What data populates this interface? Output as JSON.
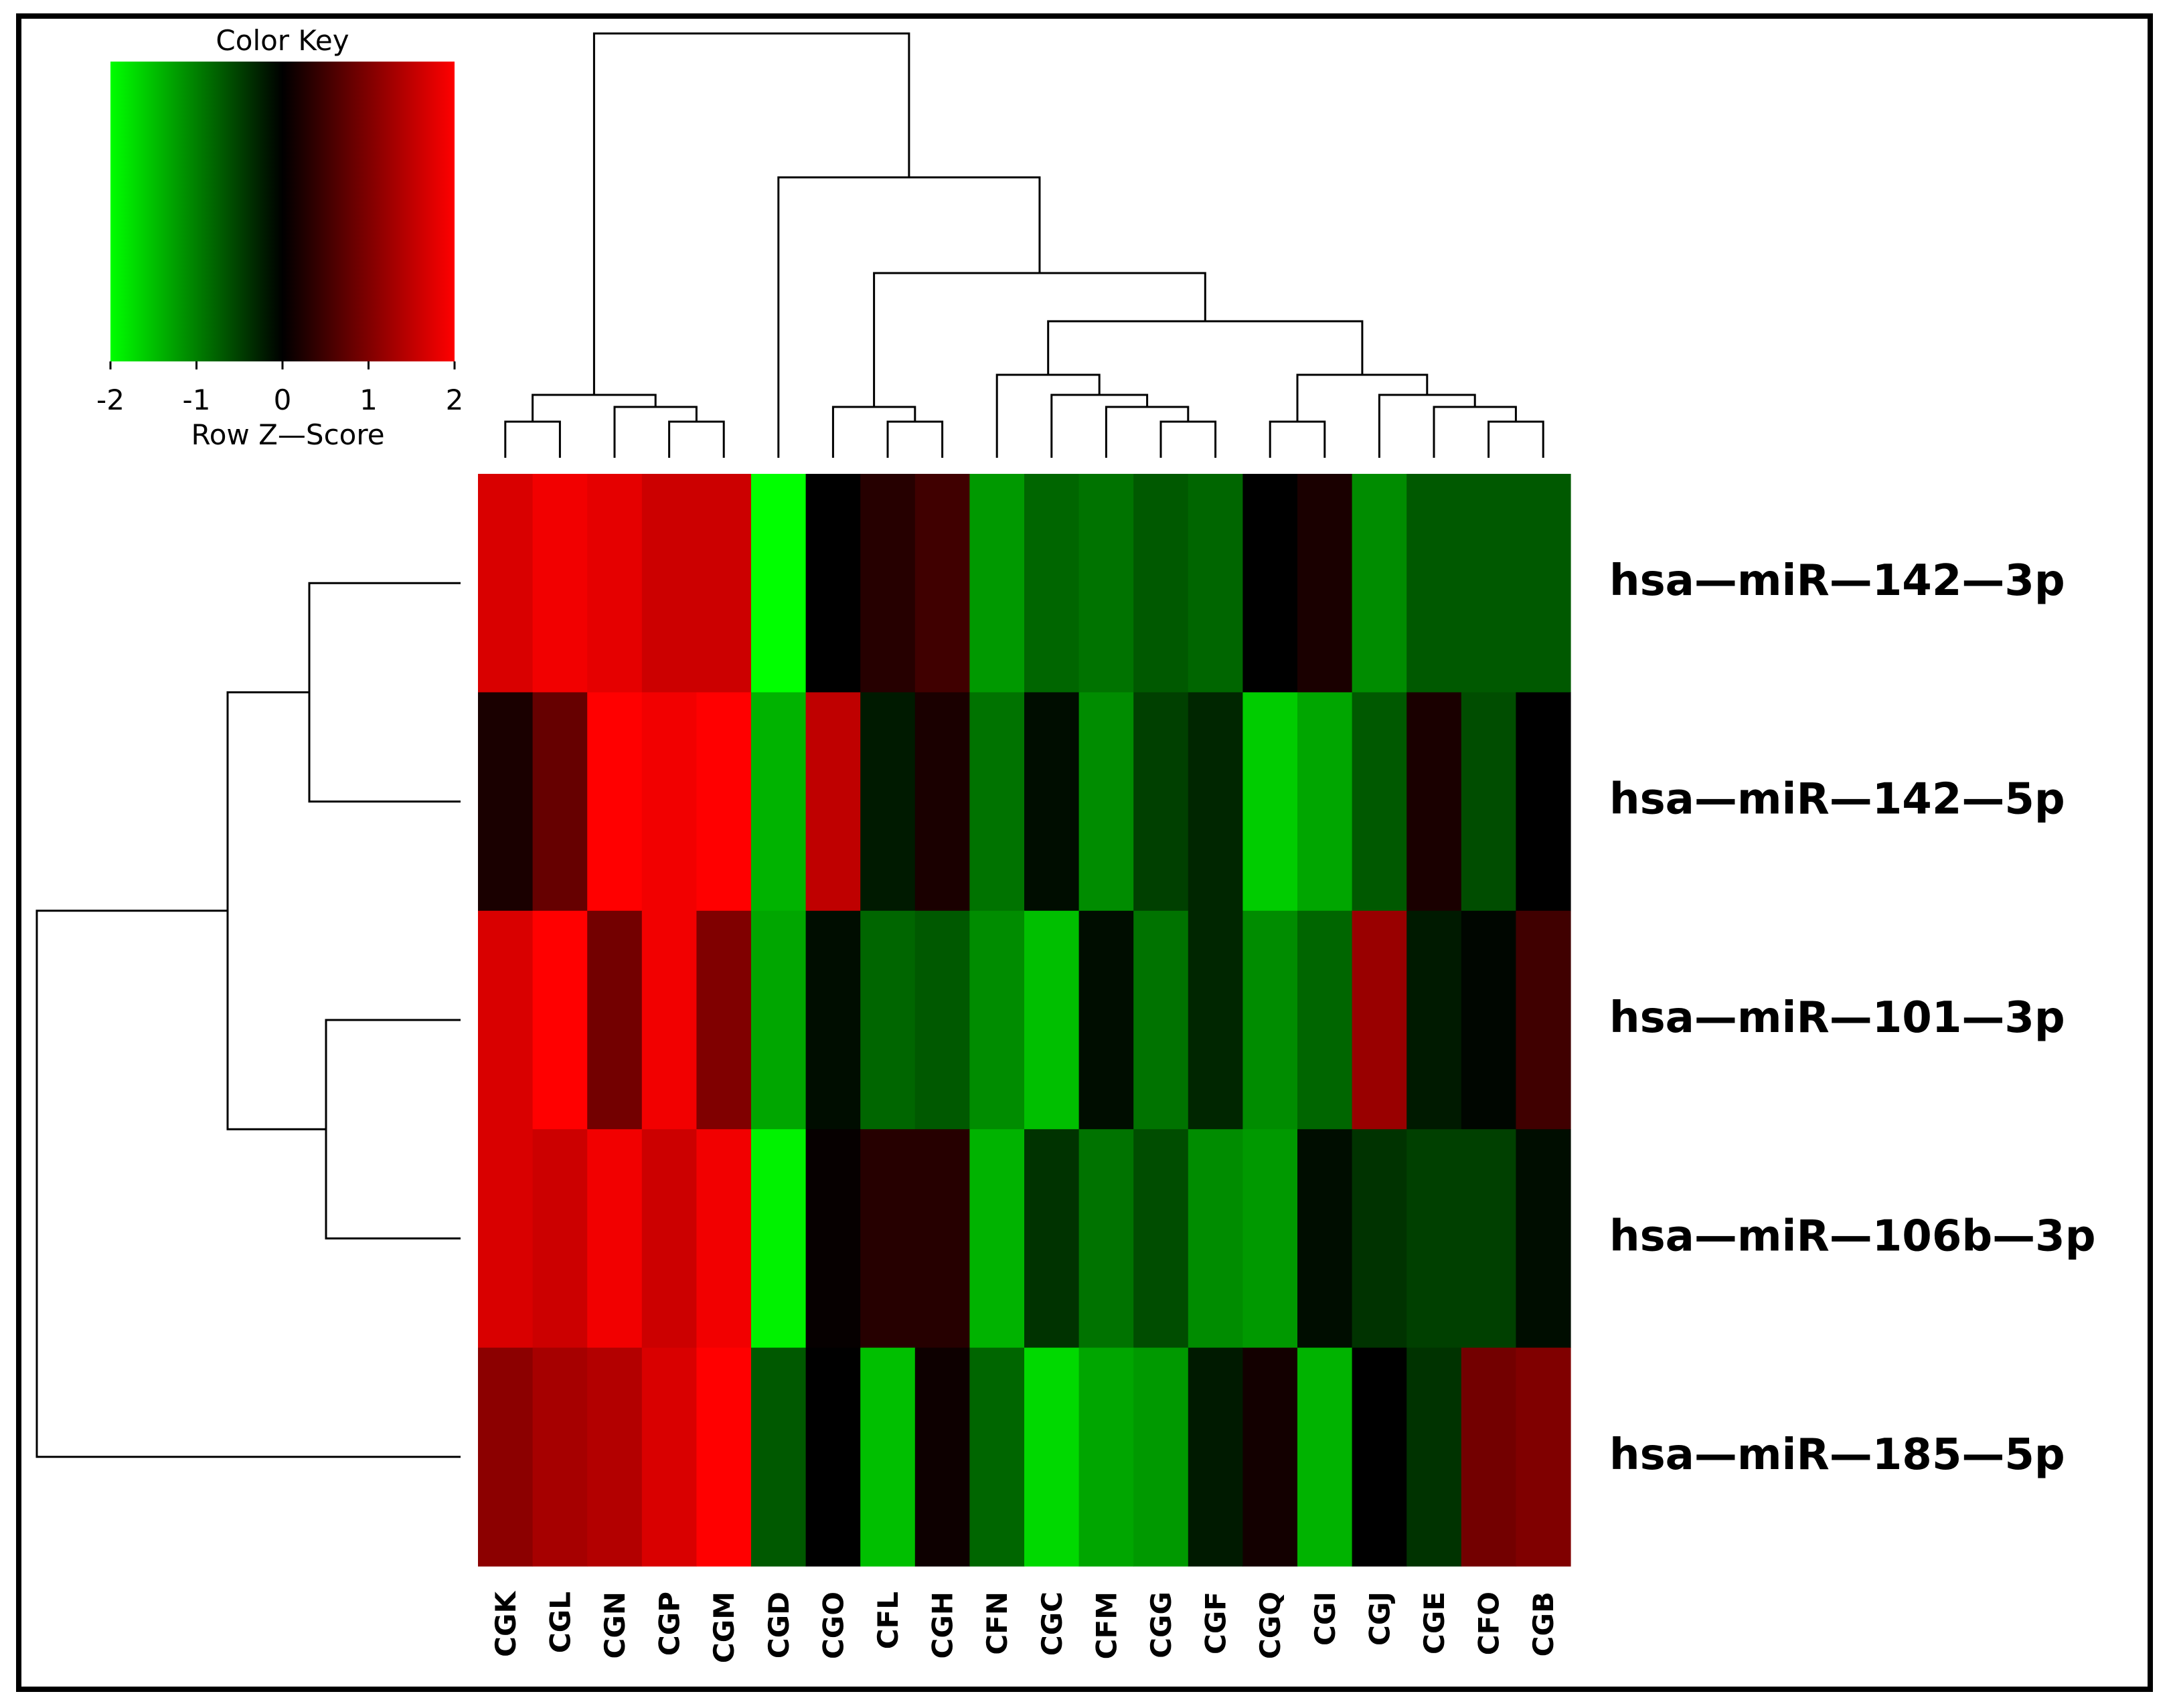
{
  "chart_data": {
    "type": "heatmap",
    "title": "",
    "columns": [
      "CGK",
      "CGL",
      "CGN",
      "CGP",
      "CGM",
      "CGD",
      "CGO",
      "CFL",
      "CGH",
      "CFN",
      "CGC",
      "CFM",
      "CGG",
      "CGF",
      "CGQ",
      "CGI",
      "CGJ",
      "CGE",
      "CFO",
      "CGB"
    ],
    "rows": [
      "hsa—miR—142—3p",
      "hsa—miR—142—5p",
      "hsa—miR—101—3p",
      "hsa—miR—106b—3p",
      "hsa—miR—185—5p"
    ],
    "values": [
      [
        1.7,
        1.9,
        1.8,
        1.6,
        1.6,
        -2.0,
        0.0,
        0.3,
        0.5,
        -1.2,
        -0.8,
        -0.9,
        -0.7,
        -0.8,
        0.0,
        0.2,
        -1.1,
        -0.7,
        -0.7,
        -0.7
      ],
      [
        0.2,
        0.8,
        2.0,
        1.9,
        2.0,
        -1.4,
        1.5,
        -0.2,
        0.2,
        -0.9,
        -0.1,
        -1.1,
        -0.5,
        -0.3,
        -1.6,
        -1.3,
        -0.7,
        0.2,
        -0.6,
        0.0
      ],
      [
        1.7,
        2.0,
        0.9,
        1.9,
        1.0,
        -1.3,
        -0.1,
        -0.8,
        -0.7,
        -1.1,
        -1.5,
        -0.1,
        -0.9,
        -0.3,
        -1.1,
        -0.8,
        1.2,
        -0.2,
        -0.05,
        0.5
      ],
      [
        1.7,
        1.6,
        1.9,
        1.6,
        1.9,
        -1.9,
        0.05,
        0.3,
        0.3,
        -1.4,
        -0.4,
        -0.9,
        -0.6,
        -1.1,
        -1.2,
        -0.1,
        -0.4,
        -0.5,
        -0.5,
        -0.1
      ],
      [
        1.1,
        1.3,
        1.4,
        1.7,
        2.0,
        -0.7,
        0.0,
        -1.5,
        0.1,
        -0.8,
        -1.7,
        -1.3,
        -1.2,
        -0.2,
        0.15,
        -1.4,
        0.0,
        -0.4,
        0.9,
        1.0
      ]
    ],
    "color_key": {
      "title": "Color Key",
      "xlabel": "Row Z—Score",
      "ticks": [
        "-2",
        "-1",
        "0",
        "1",
        "2"
      ],
      "range": [
        -2,
        2
      ],
      "low_color": "#00ff00",
      "mid_color": "#000000",
      "high_color": "#ff0000"
    },
    "column_dendrogram_order": [
      "CGK",
      "CGL",
      "CGN",
      "CGP",
      "CGM",
      "CGD",
      "CGO",
      "CFL",
      "CGH",
      "CFN",
      "CGC",
      "CFM",
      "CGG",
      "CGF",
      "CGQ",
      "CGI",
      "CGJ",
      "CGE",
      "CFO",
      "CGB"
    ],
    "row_dendrogram_order": [
      "hsa—miR—142—3p",
      "hsa—miR—142—5p",
      "hsa—miR—101—3p",
      "hsa—miR—106b—3p",
      "hsa—miR—185—5p"
    ],
    "legend_position": "top-left"
  }
}
